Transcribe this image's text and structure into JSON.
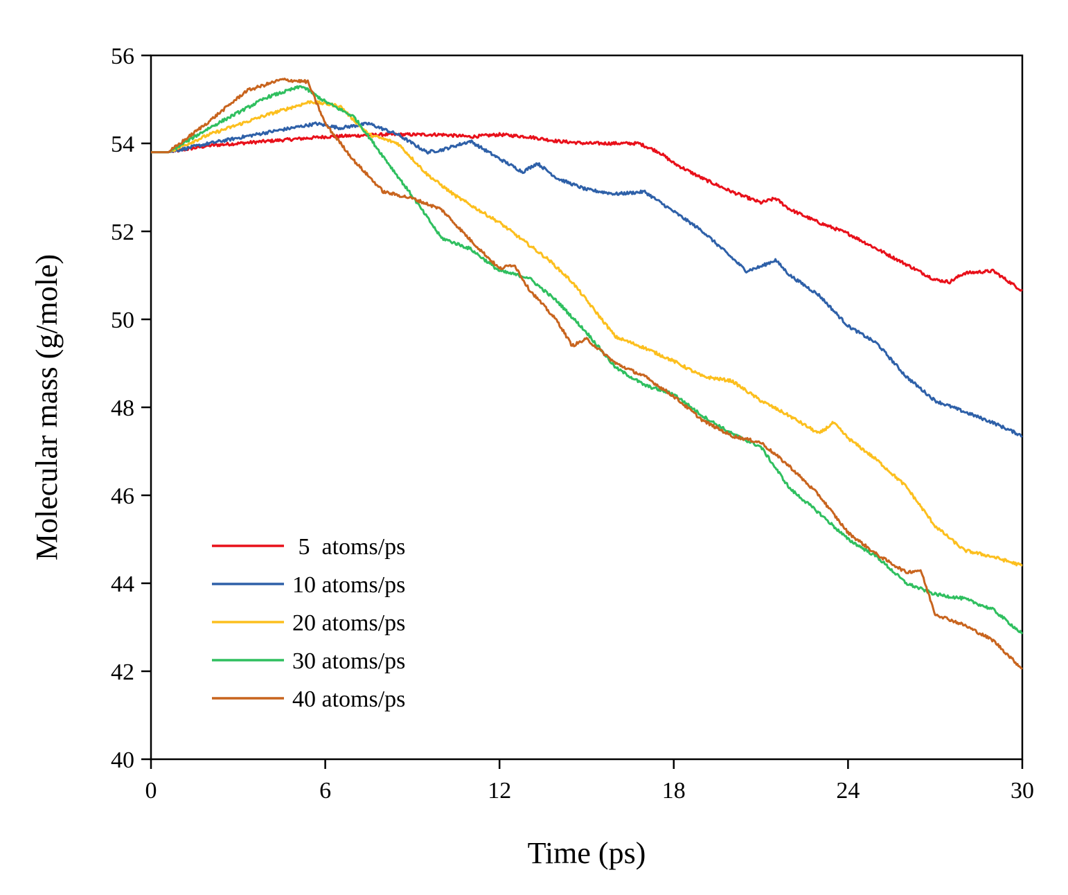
{
  "chart_data": {
    "type": "line",
    "title": "",
    "xlabel": "Time (ps)",
    "ylabel": "Molecular mass (g/mole)",
    "xlim": [
      0,
      30
    ],
    "ylim": [
      40,
      56
    ],
    "xticks": [
      "0",
      "6",
      "12",
      "18",
      "24",
      "30"
    ],
    "yticks": [
      "40",
      "42",
      "44",
      "46",
      "48",
      "50",
      "52",
      "54",
      "56"
    ],
    "grid": false,
    "legend_position": "lower-left",
    "series": [
      {
        "name": "5  atoms/ps",
        "color": "#e8101a",
        "x": [
          0,
          0.6,
          2,
          4,
          6,
          8,
          10,
          11,
          12,
          13,
          14,
          15,
          16,
          16.8,
          17.5,
          18,
          19,
          20,
          21,
          21.5,
          22,
          23,
          24,
          25,
          26,
          27,
          27.5,
          28,
          29,
          30
        ],
        "y": [
          53.8,
          53.8,
          53.95,
          54.05,
          54.15,
          54.2,
          54.2,
          54.15,
          54.2,
          54.15,
          54.05,
          54.0,
          54.0,
          54.0,
          53.8,
          53.55,
          53.2,
          52.9,
          52.65,
          52.75,
          52.5,
          52.2,
          51.95,
          51.6,
          51.25,
          50.9,
          50.85,
          51.05,
          51.1,
          50.65
        ]
      },
      {
        "name": "10 atoms/ps",
        "color": "#2e60a8",
        "x": [
          0,
          0.6,
          2,
          4,
          5.7,
          6.5,
          7.5,
          8.5,
          9.5,
          10,
          11,
          12,
          12.8,
          13.3,
          14,
          15,
          16,
          17,
          18,
          19,
          20,
          20.5,
          21,
          21.5,
          22,
          23,
          24,
          25,
          26,
          27,
          28,
          29,
          30
        ],
        "y": [
          53.8,
          53.8,
          54.0,
          54.25,
          54.45,
          54.35,
          54.45,
          54.2,
          53.8,
          53.85,
          54.05,
          53.65,
          53.35,
          53.55,
          53.2,
          52.95,
          52.85,
          52.9,
          52.45,
          52.0,
          51.4,
          51.1,
          51.2,
          51.35,
          51.0,
          50.55,
          49.85,
          49.45,
          48.7,
          48.15,
          47.9,
          47.65,
          47.35
        ]
      },
      {
        "name": "20 atoms/ps",
        "color": "#fcbf1e",
        "x": [
          0,
          0.6,
          2,
          4,
          5.5,
          6.5,
          7.5,
          8.5,
          9.5,
          10.5,
          12,
          13,
          13.7,
          14.5,
          16,
          17,
          18,
          19,
          20,
          21,
          22,
          23,
          23.5,
          24,
          25,
          26,
          27,
          28,
          29,
          30
        ],
        "y": [
          53.8,
          53.8,
          54.2,
          54.65,
          54.95,
          54.85,
          54.2,
          54.0,
          53.3,
          52.8,
          52.2,
          51.7,
          51.35,
          50.85,
          49.6,
          49.35,
          49.05,
          48.7,
          48.6,
          48.15,
          47.8,
          47.4,
          47.65,
          47.3,
          46.8,
          46.2,
          45.3,
          44.75,
          44.6,
          44.4
        ]
      },
      {
        "name": "30 atoms/ps",
        "color": "#2fbf5f",
        "x": [
          0,
          0.6,
          2,
          4,
          5.2,
          6,
          7,
          8,
          9,
          10,
          11,
          12,
          13,
          14,
          15,
          16,
          17,
          18,
          19,
          20,
          21,
          22,
          23,
          24,
          25,
          26,
          27,
          28,
          29,
          30
        ],
        "y": [
          53.8,
          53.8,
          54.35,
          55.05,
          55.3,
          54.95,
          54.6,
          53.7,
          52.8,
          51.85,
          51.6,
          51.1,
          50.95,
          50.4,
          49.7,
          48.9,
          48.5,
          48.3,
          47.8,
          47.4,
          47.1,
          46.15,
          45.6,
          45.0,
          44.6,
          44.0,
          43.75,
          43.65,
          43.4,
          42.85
        ]
      },
      {
        "name": "40 atoms/ps",
        "color": "#c8641e",
        "x": [
          0,
          0.6,
          2,
          3.3,
          4.5,
          5.4,
          6,
          7,
          8,
          9,
          10,
          11,
          12,
          12.5,
          13,
          14,
          14.5,
          15,
          16,
          17,
          18,
          19,
          20,
          21,
          22,
          23,
          24,
          25,
          26,
          26.5,
          27,
          28,
          29,
          30
        ],
        "y": [
          53.8,
          53.8,
          54.5,
          55.2,
          55.45,
          55.4,
          54.45,
          53.6,
          52.9,
          52.75,
          52.5,
          51.8,
          51.15,
          51.25,
          50.7,
          49.95,
          49.4,
          49.55,
          49.0,
          48.7,
          48.25,
          47.7,
          47.35,
          47.2,
          46.65,
          46.0,
          45.15,
          44.65,
          44.25,
          44.3,
          43.3,
          43.05,
          42.7,
          42.05
        ]
      }
    ]
  }
}
